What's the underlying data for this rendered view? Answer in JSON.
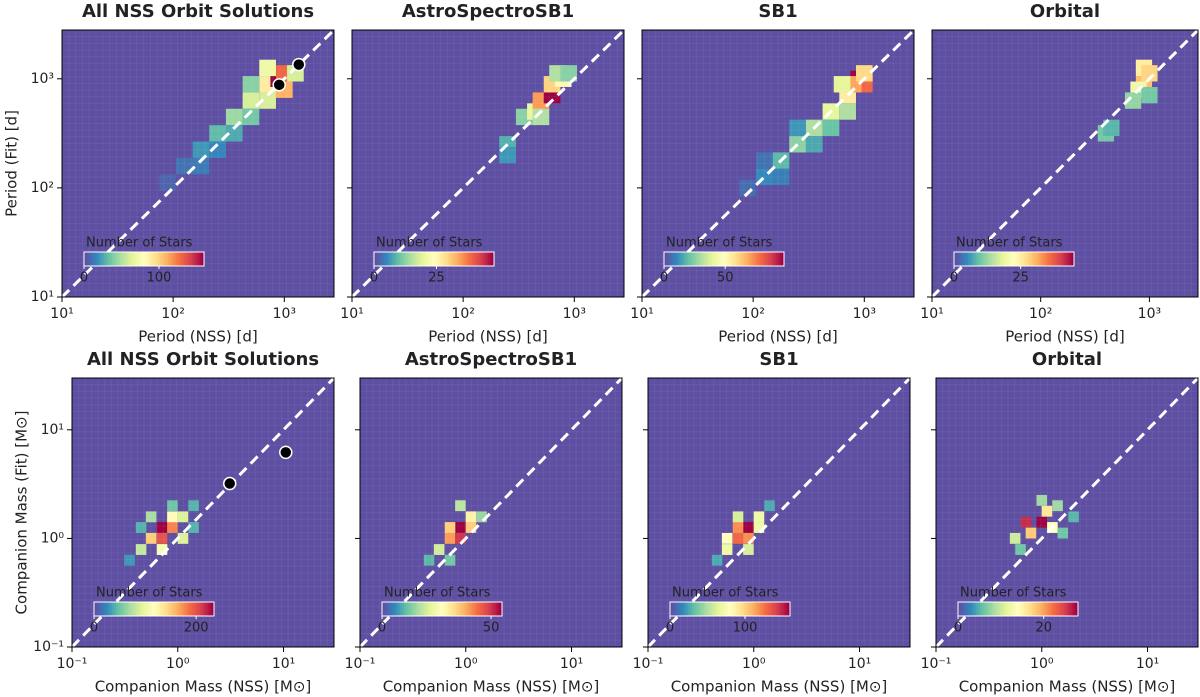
{
  "chart_data": [
    {
      "type": "heatmap",
      "title": "All NSS Orbit Solutions",
      "xlabel": "Period (NSS) [d]",
      "ylabel": "Period (Fit) [d]",
      "log_scale": true,
      "xlim": [
        10,
        2800
      ],
      "ylim": [
        10,
        2800
      ],
      "xticks": [
        {
          "value": 10,
          "label": "10¹"
        },
        {
          "value": 100,
          "label": "10²"
        },
        {
          "value": 1000,
          "label": "10³"
        }
      ],
      "yticks": [
        {
          "value": 10,
          "label": "10¹"
        },
        {
          "value": 100,
          "label": "10²"
        },
        {
          "value": 1000,
          "label": "10³"
        }
      ],
      "bin_dex": 0.15,
      "cells": {
        "x": [
          126,
          178,
          251,
          251,
          355,
          355,
          501,
          501,
          708,
          708,
          891,
          1000,
          1000,
          708,
          1259,
          501,
          178,
          89
        ],
        "y": [
          158,
          224,
          316,
          224,
          447,
          316,
          631,
          447,
          891,
          631,
          1000,
          794,
          1122,
          1259,
          1122,
          891,
          158,
          112
        ],
        "values": [
          10,
          20,
          30,
          15,
          45,
          25,
          60,
          35,
          90,
          60,
          160,
          110,
          130,
          70,
          60,
          40,
          12,
          6
        ]
      },
      "points": {
        "x": [
          900,
          1350
        ],
        "y": [
          880,
          1350
        ]
      },
      "colorbar_label": "Number of Stars",
      "vlim": [
        0,
        160
      ],
      "colorbar_ticks": [
        0,
        100
      ]
    },
    {
      "type": "heatmap",
      "title": "AstroSpectroSB1",
      "xlabel": "Period (NSS) [d]",
      "log_scale": true,
      "xlim": [
        10,
        2800
      ],
      "ylim": [
        10,
        2800
      ],
      "xticks": [
        {
          "value": 10,
          "label": "10¹"
        },
        {
          "value": 100,
          "label": "10²"
        },
        {
          "value": 1000,
          "label": "10³"
        }
      ],
      "yticks": [
        10,
        100,
        1000
      ],
      "bin_dex": 0.15,
      "cells": {
        "x": [
          251,
          251,
          355,
          447,
          501,
          631,
          631,
          794,
          708,
          891,
          501
        ],
        "y": [
          251,
          200,
          447,
          501,
          631,
          708,
          891,
          1000,
          1122,
          1122,
          447
        ],
        "values": [
          8,
          6,
          12,
          20,
          35,
          48,
          30,
          25,
          15,
          12,
          15
        ]
      },
      "colorbar_label": "Number of Stars",
      "vlim": [
        0,
        48
      ],
      "colorbar_ticks": [
        0,
        25
      ]
    },
    {
      "type": "heatmap",
      "title": "SB1",
      "xlabel": "Period (NSS) [d]",
      "log_scale": true,
      "xlim": [
        10,
        2800
      ],
      "ylim": [
        10,
        2800
      ],
      "xticks": [
        {
          "value": 10,
          "label": "10¹"
        },
        {
          "value": 100,
          "label": "10²"
        },
        {
          "value": 1000,
          "label": "10³"
        }
      ],
      "yticks": [
        10,
        100,
        1000
      ],
      "bin_dex": 0.15,
      "cells": {
        "x": [
          126,
          178,
          251,
          355,
          355,
          251,
          501,
          501,
          708,
          708,
          891,
          1000,
          794,
          631,
          1000,
          126,
          89,
          178
        ],
        "y": [
          126,
          178,
          251,
          355,
          251,
          355,
          501,
          355,
          708,
          501,
          1000,
          891,
          891,
          891,
          1122,
          178,
          100,
          126
        ],
        "values": [
          10,
          18,
          25,
          30,
          15,
          12,
          40,
          20,
          55,
          30,
          98,
          80,
          70,
          40,
          60,
          6,
          5,
          8
        ]
      },
      "colorbar_label": "Number of Stars",
      "vlim": [
        0,
        98
      ],
      "colorbar_ticks": [
        0,
        50
      ]
    },
    {
      "type": "heatmap",
      "title": "Orbital",
      "xlabel": "Period (NSS) [d]",
      "log_scale": true,
      "xlim": [
        10,
        2800
      ],
      "ylim": [
        10,
        2800
      ],
      "xticks": [
        {
          "value": 10,
          "label": "10¹"
        },
        {
          "value": 100,
          "label": "10²"
        },
        {
          "value": 1000,
          "label": "10³"
        }
      ],
      "yticks": [
        10,
        100,
        1000
      ],
      "bin_dex": 0.15,
      "cells": {
        "x": [
          891,
          891,
          891,
          794,
          708,
          1000,
          398,
          447,
          1000
        ],
        "y": [
          1000,
          891,
          1259,
          794,
          631,
          1122,
          316,
          355,
          708
        ],
        "values": [
          45,
          30,
          25,
          20,
          12,
          28,
          10,
          8,
          10
        ]
      },
      "colorbar_label": "Number of Stars",
      "vlim": [
        0,
        45
      ],
      "colorbar_ticks": [
        0,
        25
      ]
    },
    {
      "type": "heatmap",
      "title": "All NSS Orbit Solutions",
      "xlabel": "Companion Mass (NSS) [M⊙]",
      "ylabel": "Companion Mass (Fit) [M⊙]",
      "log_scale": true,
      "xlim": [
        0.1,
        30
      ],
      "ylim": [
        0.1,
        30
      ],
      "xticks": [
        {
          "value": 0.1,
          "label": "10⁻¹"
        },
        {
          "value": 1,
          "label": "10⁰"
        },
        {
          "value": 10,
          "label": "10¹"
        }
      ],
      "yticks": [
        {
          "value": 0.1,
          "label": "10⁻¹"
        },
        {
          "value": 1,
          "label": "10⁰"
        },
        {
          "value": 10,
          "label": "10¹"
        }
      ],
      "bin_dex": 0.1,
      "cells": {
        "x": [
          0.71,
          0.89,
          0.56,
          0.71,
          0.89,
          0.45,
          1.12,
          0.56,
          0.35,
          1.41,
          0.71,
          1.12,
          1.41,
          0.45,
          0.89
        ],
        "y": [
          1.26,
          1.26,
          1.0,
          1.0,
          1.58,
          0.79,
          1.58,
          1.58,
          0.63,
          2.0,
          0.79,
          1.0,
          1.26,
          1.26,
          2.0
        ],
        "values": [
          235,
          180,
          150,
          200,
          120,
          80,
          90,
          70,
          30,
          40,
          110,
          90,
          40,
          40,
          50
        ]
      },
      "points": {
        "x": [
          3.1,
          10.5
        ],
        "y": [
          3.2,
          6.2
        ]
      },
      "colorbar_label": "Number of Stars",
      "vlim": [
        0,
        235
      ],
      "colorbar_ticks": [
        0,
        200
      ]
    },
    {
      "type": "heatmap",
      "title": "AstroSpectroSB1",
      "xlabel": "Companion Mass (NSS) [M⊙]",
      "log_scale": true,
      "xlim": [
        0.1,
        30
      ],
      "ylim": [
        0.1,
        30
      ],
      "xticks": [
        {
          "value": 0.1,
          "label": "10⁻¹"
        },
        {
          "value": 1,
          "label": "10⁰"
        },
        {
          "value": 10,
          "label": "10¹"
        }
      ],
      "yticks": [
        0.1,
        1,
        10
      ],
      "bin_dex": 0.1,
      "cells": {
        "x": [
          0.89,
          0.71,
          0.89,
          1.12,
          0.71,
          0.56,
          1.12,
          0.45,
          1.41,
          0.71,
          0.89
        ],
        "y": [
          1.26,
          1.0,
          1.0,
          1.58,
          1.26,
          0.79,
          1.26,
          0.63,
          1.58,
          0.63,
          2.0
        ],
        "values": [
          55,
          40,
          50,
          30,
          35,
          20,
          35,
          10,
          15,
          12,
          18
        ]
      },
      "colorbar_label": "Number of Stars",
      "vlim": [
        0,
        55
      ],
      "colorbar_ticks": [
        0,
        50
      ]
    },
    {
      "type": "heatmap",
      "title": "SB1",
      "xlabel": "Companion Mass (NSS) [M⊙]",
      "log_scale": true,
      "xlim": [
        0.1,
        30
      ],
      "ylim": [
        0.1,
        30
      ],
      "xticks": [
        {
          "value": 0.1,
          "label": "10⁻¹"
        },
        {
          "value": 1,
          "label": "10⁰"
        },
        {
          "value": 10,
          "label": "10¹"
        }
      ],
      "yticks": [
        0.1,
        1,
        10
      ],
      "bin_dex": 0.1,
      "cells": {
        "x": [
          0.89,
          0.71,
          0.71,
          0.89,
          0.56,
          1.12,
          0.56,
          1.12,
          0.45,
          1.41,
          0.89,
          0.71
        ],
        "y": [
          1.26,
          1.0,
          1.26,
          1.0,
          0.79,
          1.58,
          1.0,
          1.26,
          0.63,
          2.0,
          0.79,
          1.58
        ],
        "values": [
          160,
          130,
          120,
          120,
          70,
          70,
          80,
          70,
          25,
          25,
          60,
          60
        ]
      },
      "colorbar_label": "Number of Stars",
      "vlim": [
        0,
        160
      ],
      "colorbar_ticks": [
        0,
        100
      ]
    },
    {
      "type": "heatmap",
      "title": "Orbital",
      "xlabel": "Companion Mass (NSS) [M⊙]",
      "log_scale": true,
      "xlim": [
        0.1,
        30
      ],
      "ylim": [
        0.1,
        30
      ],
      "xticks": [
        {
          "value": 0.1,
          "label": "10⁻¹"
        },
        {
          "value": 1,
          "label": "10⁰"
        },
        {
          "value": 10,
          "label": "10¹"
        }
      ],
      "yticks": [
        0.1,
        1,
        10
      ],
      "bin_dex": 0.1,
      "cells": {
        "x": [
          1.0,
          0.71,
          1.12,
          0.79,
          1.26,
          0.56,
          1.41,
          2.0,
          0.63,
          1.58,
          1.0
        ],
        "y": [
          1.41,
          1.41,
          1.78,
          1.12,
          1.26,
          1.0,
          2.0,
          1.58,
          0.79,
          1.12,
          2.24
        ],
        "values": [
          28,
          26,
          16,
          18,
          14,
          10,
          8,
          5,
          6,
          6,
          8
        ]
      },
      "colorbar_label": "Number of Stars",
      "vlim": [
        0,
        28
      ],
      "colorbar_ticks": [
        0,
        20
      ]
    }
  ],
  "colormap": [
    "#5e4fa2",
    "#3288bd",
    "#66c2a5",
    "#abdda4",
    "#e6f598",
    "#ffffbf",
    "#fee08b",
    "#fdae61",
    "#f46d43",
    "#d53e4f",
    "#9e0142"
  ]
}
